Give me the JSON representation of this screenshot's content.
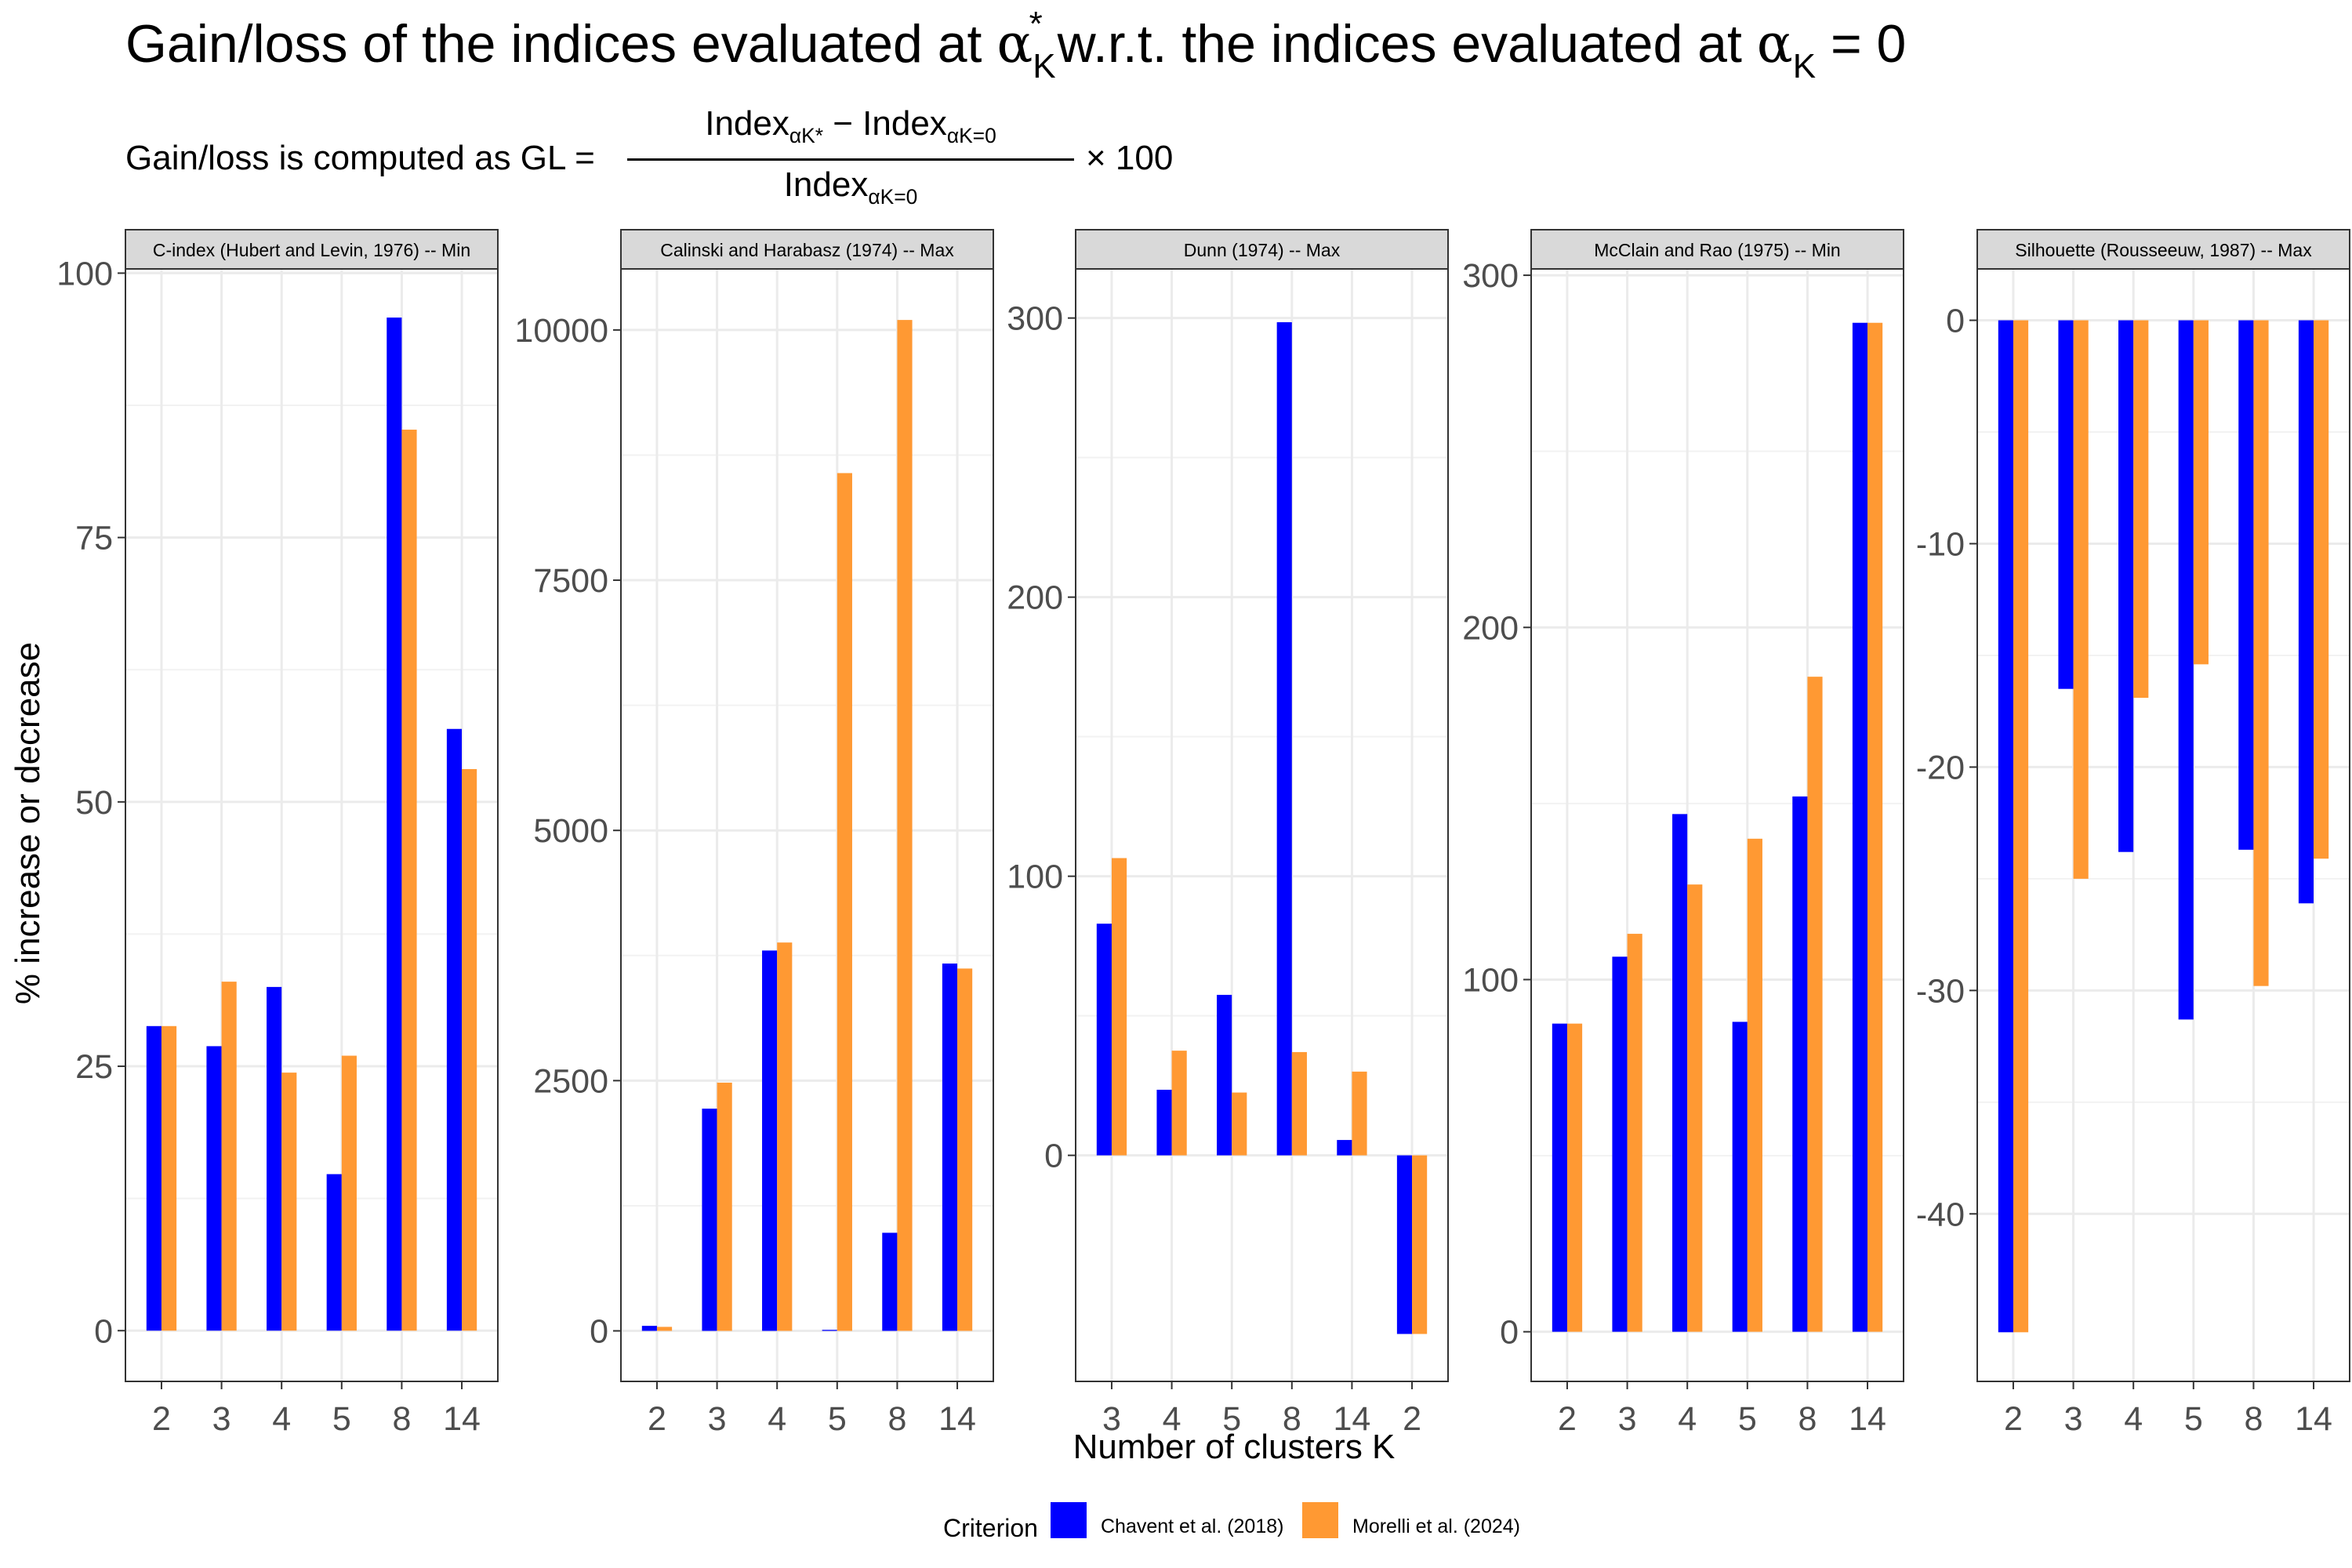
{
  "title": {
    "prefix": "Gain/loss of the indices evaluated at ",
    "alpha_star": "α",
    "star_sub": "K",
    "star_sup": "*",
    "middle": "w.r.t. the indices evaluated at ",
    "alpha_zero": "α",
    "zero_sub": "K",
    "zero_suffix": " = 0"
  },
  "subtitle": {
    "lead": "Gain/loss is computed as GL =",
    "numerator_a": "Index",
    "numerator_a_sub": "αK*",
    "numerator_minus": " − ",
    "numerator_b": "Index",
    "numerator_b_sub": "αK=0",
    "denominator": "Index",
    "denominator_sub": "αK=0",
    "times": "× 100"
  },
  "legend": {
    "title": "Criterion",
    "placement": "bottom",
    "items": [
      {
        "label": "Chavent et al. (2018)",
        "color": "#0000FF"
      },
      {
        "label": "Morelli et al. (2024)",
        "color": "#FF9933"
      }
    ]
  },
  "chart_data": [
    {
      "type": "bar",
      "title": "C-index (Hubert and Levin, 1976) -- Min",
      "categories": [
        "2",
        "3",
        "4",
        "5",
        "8",
        "14"
      ],
      "series": [
        {
          "name": "Chavent et al. (2018)",
          "values": [
            28.8,
            26.9,
            32.5,
            14.8,
            95.8,
            56.9
          ]
        },
        {
          "name": "Morelli et al. (2024)",
          "values": [
            28.8,
            33.0,
            24.4,
            26.0,
            85.2,
            53.1
          ]
        }
      ],
      "ylim": [
        -4.8,
        100.4
      ],
      "yticks": [
        0,
        25,
        50,
        75,
        100
      ],
      "xlabel": "",
      "ylabel": "% increase or decrease"
    },
    {
      "type": "bar",
      "title": "Calinski and Harabasz (1974) -- Max",
      "categories": [
        "2",
        "3",
        "4",
        "5",
        "8",
        "14"
      ],
      "series": [
        {
          "name": "Chavent et al. (2018)",
          "values": [
            50,
            2220,
            3800,
            10,
            980,
            3670
          ]
        },
        {
          "name": "Morelli et al. (2024)",
          "values": [
            40,
            2480,
            3880,
            8570,
            10100,
            3620
          ]
        }
      ],
      "ylim": [
        -505,
        10610
      ],
      "yticks": [
        0,
        2500,
        5000,
        7500,
        10000
      ],
      "xlabel": "",
      "ylabel": ""
    },
    {
      "type": "bar",
      "title": "Dunn (1974) -- Max",
      "categories": [
        "3",
        "4",
        "5",
        "8",
        "14",
        "2"
      ],
      "series": [
        {
          "name": "Chavent et al. (2018)",
          "values": [
            83,
            23.5,
            57.5,
            298.5,
            5.5,
            -64
          ]
        },
        {
          "name": "Morelli et al. (2024)",
          "values": [
            106.5,
            37.5,
            22.5,
            37,
            30,
            -64
          ]
        }
      ],
      "ylim": [
        -81,
        317.6
      ],
      "yticks": [
        0,
        100,
        200,
        300
      ],
      "xlabel": "Number of clusters K",
      "ylabel": ""
    },
    {
      "type": "bar",
      "title": "McClain and Rao (1975) -- Min",
      "categories": [
        "2",
        "3",
        "4",
        "5",
        "8",
        "14"
      ],
      "series": [
        {
          "name": "Chavent et al. (2018)",
          "values": [
            87.5,
            106.5,
            147,
            88,
            152,
            286.5
          ]
        },
        {
          "name": "Morelli et al. (2024)",
          "values": [
            87.5,
            113,
            127,
            140,
            186,
            286.5
          ]
        }
      ],
      "ylim": [
        -14.1,
        301.8
      ],
      "yticks": [
        0,
        100,
        200,
        300
      ],
      "xlabel": "",
      "ylabel": ""
    },
    {
      "type": "bar",
      "title": "Silhouette (Rousseeuw, 1987) -- Max",
      "categories": [
        "2",
        "3",
        "4",
        "5",
        "8",
        "14"
      ],
      "series": [
        {
          "name": "Chavent et al. (2018)",
          "values": [
            -45.3,
            -16.5,
            -23.8,
            -31.3,
            -23.7,
            -26.1
          ]
        },
        {
          "name": "Morelli et al. (2024)",
          "values": [
            -45.3,
            -25.0,
            -16.9,
            -15.4,
            -29.8,
            -24.1
          ]
        }
      ],
      "ylim": [
        -47.5,
        2.3
      ],
      "yticks": [
        -40,
        -30,
        -20,
        -10,
        0
      ],
      "xlabel": "",
      "ylabel": ""
    }
  ]
}
